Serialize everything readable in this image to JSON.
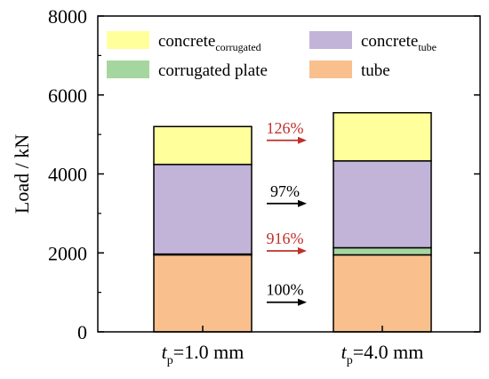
{
  "chart_data": {
    "type": "bar",
    "stacked": true,
    "categories": [
      {
        "italic": "t",
        "sub": "p",
        "rest": "=1.0 mm"
      },
      {
        "italic": "t",
        "sub": "p",
        "rest": "=4.0 mm"
      }
    ],
    "series": [
      {
        "name": "tube",
        "color": "#f9c08d",
        "values": [
          1950,
          1950
        ]
      },
      {
        "name": "corrugated plate",
        "color": "#a5d6a0",
        "values": [
          20,
          180
        ]
      },
      {
        "name": "concrete",
        "name_sub": "tube",
        "color": "#c2b3d8",
        "values": [
          2270,
          2200
        ]
      },
      {
        "name": "concrete",
        "name_sub": "corrugated",
        "color": "#ffff9c",
        "values": [
          960,
          1220
        ]
      }
    ],
    "ylabel": "Load / kN",
    "ylim": [
      0,
      8000
    ],
    "yticks": [
      0,
      2000,
      4000,
      6000,
      8000
    ],
    "legend": "top",
    "annotations": [
      {
        "text": "126%",
        "color": "#c0302a",
        "at_value": 4850
      },
      {
        "text": "97%",
        "color": "#000000",
        "at_value": 3250
      },
      {
        "text": "916%",
        "color": "#c0302a",
        "at_value": 2050
      },
      {
        "text": "100%",
        "color": "#000000",
        "at_value": 750
      }
    ]
  }
}
